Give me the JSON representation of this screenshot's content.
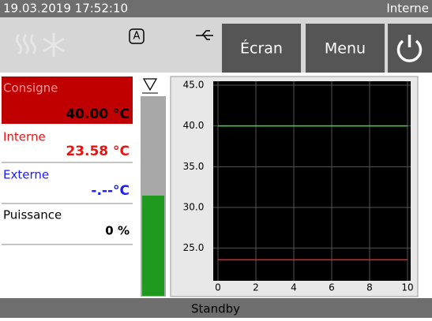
{
  "header": {
    "datetime": "19.03.2019 17:52:10",
    "mode": "Interne"
  },
  "toolbar": {
    "auto_icon": "A",
    "buttons": [
      "Écran",
      "Menu"
    ]
  },
  "panel": [
    {
      "label": "Consigne",
      "value": "40.00 °C"
    },
    {
      "label": "Interne",
      "value": "23.58 °C"
    },
    {
      "label": "Externe",
      "value": "-.--°C"
    },
    {
      "label": "Puissance",
      "value": "0 %"
    }
  ],
  "chart_data": {
    "type": "line",
    "x": [
      0,
      10
    ],
    "series": [
      {
        "name": "Consigne",
        "color": "#33dd33",
        "values": [
          40,
          40
        ]
      },
      {
        "name": "Interne",
        "color": "#ee2222",
        "values": [
          23.58,
          23.58
        ]
      }
    ],
    "xlim": [
      0,
      10
    ],
    "xticks": [
      0,
      2,
      4,
      6,
      8,
      10
    ],
    "ylim": [
      21,
      45
    ],
    "yticks": [
      {
        "value": 25,
        "label": "25.0"
      },
      {
        "value": 30,
        "label": "30.0"
      },
      {
        "value": 35,
        "label": "35.0"
      },
      {
        "value": 40,
        "label": "40.0"
      },
      {
        "value": 45,
        "label": "45.0"
      }
    ],
    "grid": true
  },
  "status": "Standby"
}
